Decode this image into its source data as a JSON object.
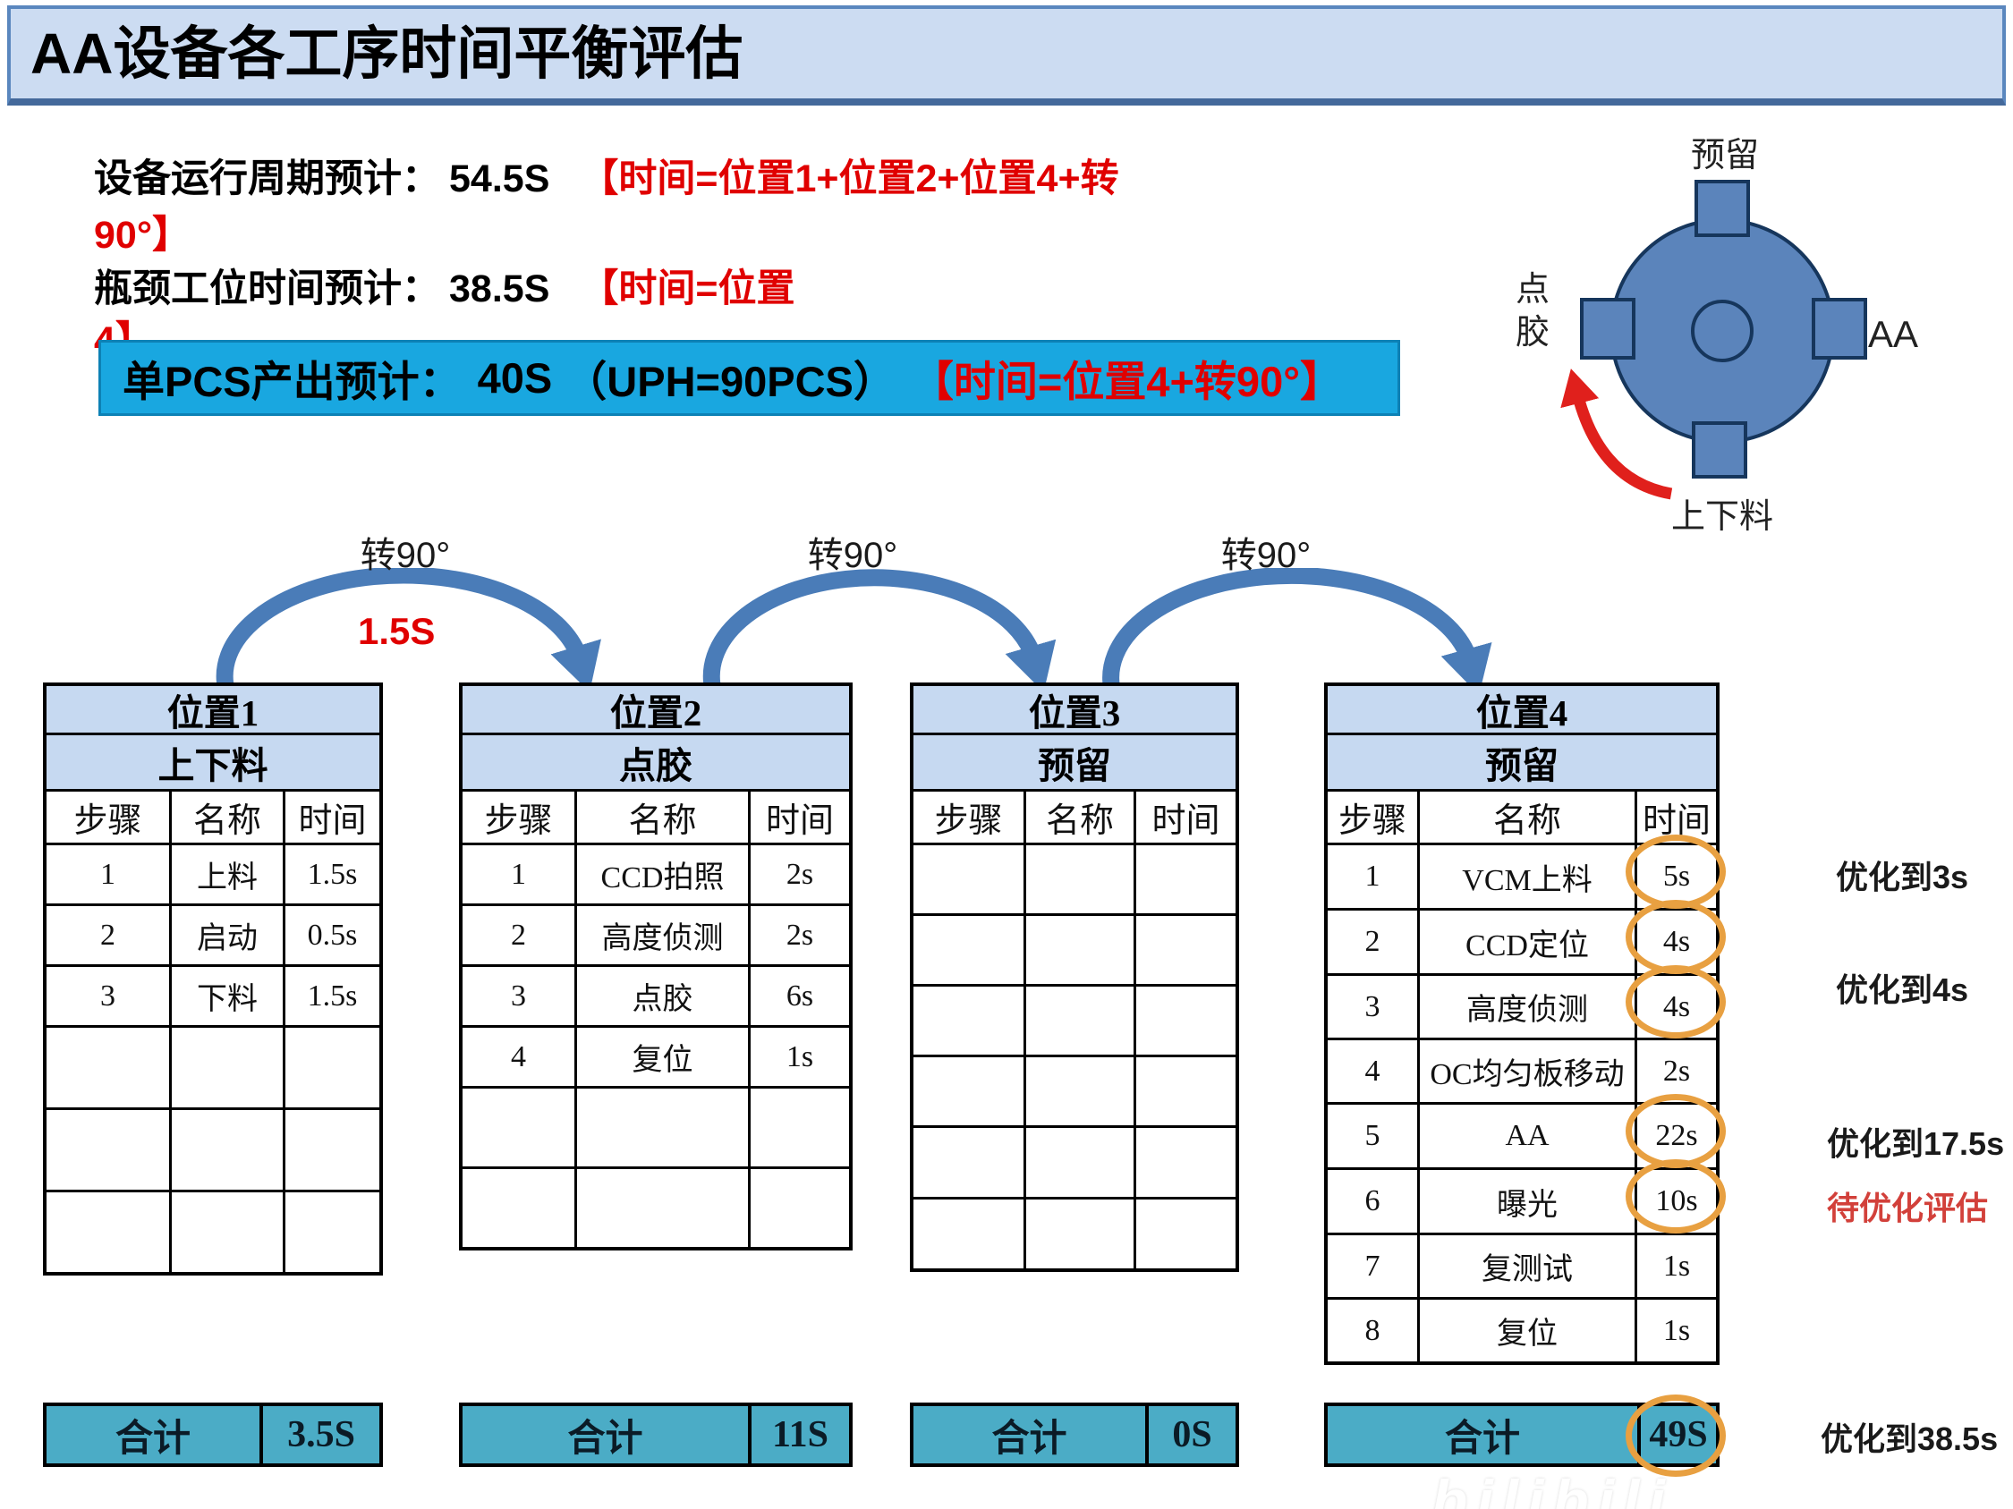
{
  "title": "AA设备各工序时间平衡评估",
  "summary": {
    "line1": {
      "label": "设备运行周期预计：",
      "value": "54.5S",
      "formula": "【时间=位置1+位置2+位置4+转"
    },
    "line2": "90°】",
    "line3": {
      "label": "瓶颈工位时间预计：",
      "value": "38.5S",
      "formula": "【时间=位置"
    },
    "line4": "4】"
  },
  "highlight": {
    "label": "单PCS产出预计：",
    "value": "40S",
    "uph": "（UPH=90PCS）",
    "formula": "【时间=位置4+转90°】"
  },
  "wheel": {
    "top": "预留",
    "left": "点胶",
    "right": "AA",
    "bottom": "上下料"
  },
  "rotations": {
    "labels": [
      "转90°",
      "转90°",
      "转90°"
    ],
    "first_time": "1.5S"
  },
  "tables": [
    {
      "title": "位置1",
      "subtitle": "上下料",
      "columns": [
        "步骤",
        "名称",
        "时间"
      ],
      "rows": [
        [
          "1",
          "上料",
          "1.5s"
        ],
        [
          "2",
          "启动",
          "0.5s"
        ],
        [
          "3",
          "下料",
          "1.5s"
        ],
        [
          "",
          "",
          ""
        ],
        [
          "",
          "",
          ""
        ],
        [
          "",
          "",
          ""
        ]
      ],
      "total_label": "合计",
      "total": "3.5S"
    },
    {
      "title": "位置2",
      "subtitle": "点胶",
      "columns": [
        "步骤",
        "名称",
        "时间"
      ],
      "rows": [
        [
          "1",
          "CCD拍照",
          "2s"
        ],
        [
          "2",
          "高度侦测",
          "2s"
        ],
        [
          "3",
          "点胶",
          "6s"
        ],
        [
          "4",
          "复位",
          "1s"
        ],
        [
          "",
          "",
          ""
        ],
        [
          "",
          "",
          ""
        ]
      ],
      "total_label": "合计",
      "total": "11S"
    },
    {
      "title": "位置3",
      "subtitle": "预留",
      "columns": [
        "步骤",
        "名称",
        "时间"
      ],
      "rows": [
        [
          "",
          "",
          ""
        ],
        [
          "",
          "",
          ""
        ],
        [
          "",
          "",
          ""
        ],
        [
          "",
          "",
          ""
        ],
        [
          "",
          "",
          ""
        ],
        [
          "",
          "",
          ""
        ]
      ],
      "total_label": "合计",
      "total": "0S"
    },
    {
      "title": "位置4",
      "subtitle": "预留",
      "columns": [
        "步骤",
        "名称",
        "时间"
      ],
      "rows": [
        [
          "1",
          "VCM上料",
          "5s"
        ],
        [
          "2",
          "CCD定位",
          "4s"
        ],
        [
          "3",
          "高度侦测",
          "4s"
        ],
        [
          "4",
          "OC均匀板移动",
          "2s"
        ],
        [
          "5",
          "AA",
          "22s"
        ],
        [
          "6",
          "曝光",
          "10s"
        ],
        [
          "7",
          "复测试",
          "1s"
        ],
        [
          "8",
          "复位",
          "1s"
        ]
      ],
      "total_label": "合计",
      "total": "49S",
      "circled_rows": [
        0,
        1,
        2,
        4,
        5
      ],
      "total_circled": true
    }
  ],
  "annotations": [
    {
      "text": "优化到3s",
      "color": "#1a1a1a"
    },
    {
      "text": "优化到4s",
      "color": "#1a1a1a"
    },
    {
      "text": "优化到17.5s",
      "color": "#1a1a1a"
    },
    {
      "text": "待优化评估",
      "color": "#d2403a"
    },
    {
      "text": "优化到38.5s",
      "color": "#1a1a1a"
    }
  ],
  "watermark": "bilibili",
  "colors": {
    "accent_blue": "#4a7cb8",
    "header_fill": "#c6d9f1",
    "highlight_cyan": "#19a7e0",
    "total_teal": "#4bacc6",
    "circle_orange": "#e8a041",
    "formula_red": "#e00000",
    "wheel_fill": "#5b84bb"
  }
}
